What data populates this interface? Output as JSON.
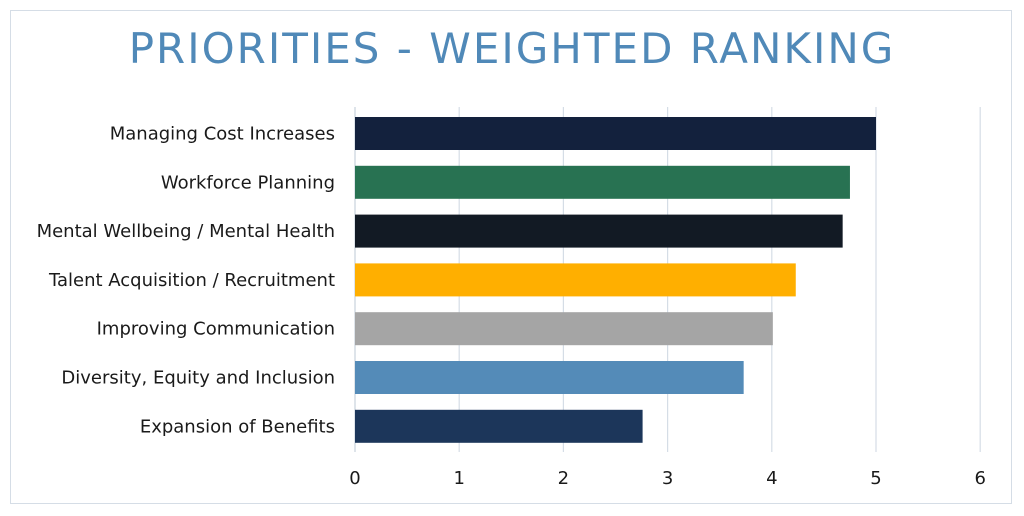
{
  "chart_data": {
    "type": "bar",
    "orientation": "horizontal",
    "title": "PRIORITIES - WEIGHTED RANKING",
    "categories": [
      "Managing Cost Increases",
      "Workforce Planning",
      "Mental Wellbeing / Mental Health",
      "Talent Acquisition / Recruitment",
      "Improving Communication",
      "Diversity, Equity and Inclusion",
      "Expansion of Benefits"
    ],
    "values": [
      5.0,
      4.75,
      4.68,
      4.23,
      4.01,
      3.73,
      2.76
    ],
    "colors": [
      "#13213d",
      "#287252",
      "#121a24",
      "#ffaf00",
      "#a5a5a5",
      "#548bb8",
      "#1c365a"
    ],
    "xlim": [
      0,
      6
    ],
    "xticks": [
      "0",
      "1",
      "2",
      "3",
      "4",
      "5",
      "6"
    ],
    "xlabel": "",
    "ylabel": "",
    "grid": true,
    "legend": "none"
  }
}
